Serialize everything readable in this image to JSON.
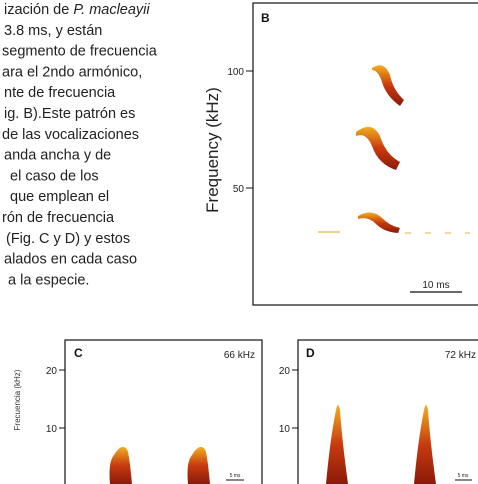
{
  "body": {
    "lines": [
      [
        "ización de ",
        "P. macleayii"
      ],
      "3.8 ms, y están",
      "segmento de frecuencia",
      "ara el 2ndo armónico,",
      "nte de frecuencia",
      "ig. B).Este patrón es",
      "de las vocalizaciones",
      "anda ancha y de",
      "el caso de los",
      "que emplean el",
      "rón de frecuencia",
      "(Fig. C y D) y estos",
      "alados en cada caso",
      "a la especie."
    ]
  },
  "figure_b": {
    "label": "B",
    "y_label": "Frequency (kHz)",
    "ticks": [
      "100",
      "50"
    ],
    "scale": "10 ms"
  },
  "figure_c": {
    "label": "C",
    "y_label": "Frecuencia (kHz)",
    "corner": "66 kHz",
    "ticks": [
      "20",
      "10"
    ],
    "scale": "5 ms"
  },
  "figure_d": {
    "label": "D",
    "corner": "72 kHz",
    "ticks": [
      "20",
      "10"
    ],
    "scale": "5 ms"
  }
}
